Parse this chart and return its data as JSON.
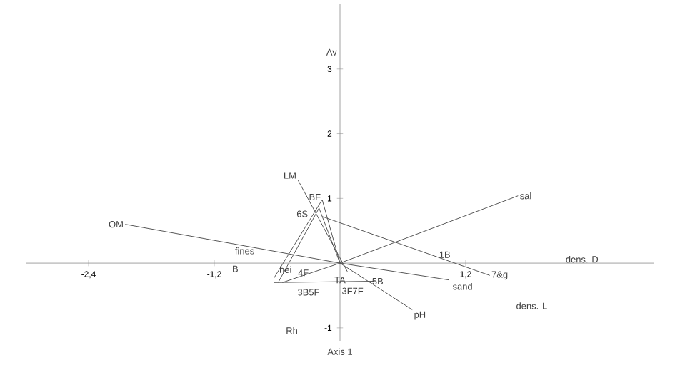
{
  "chart_data": {
    "type": "line",
    "xlabel": "Axis 1",
    "xlim": [
      -3.0,
      3.0
    ],
    "ylim": [
      -1.2,
      4.0
    ],
    "xticks": [
      {
        "value": -2.4,
        "label": "-2,4"
      },
      {
        "value": -1.2,
        "label": "-1,2"
      },
      {
        "value": 1.2,
        "label": "1,2"
      }
    ],
    "yticks": [
      -1,
      1,
      2,
      3
    ],
    "series": [
      {
        "name": "OM",
        "color": "#555555",
        "x": [
          1.04,
          0,
          -2.05
        ],
        "values": [
          -0.26,
          0,
          0.6
        ]
      },
      {
        "name": "sal",
        "color": "#555555",
        "x": [
          -0.55,
          0,
          1.7
        ],
        "values": [
          -0.3,
          0,
          1.04
        ]
      },
      {
        "name": "pH",
        "color": "#555555",
        "x": [
          0,
          0.69
        ],
        "values": [
          0,
          -0.72
        ]
      },
      {
        "name": "LM",
        "color": "#555555",
        "x": [
          0.07,
          -0.4
        ],
        "values": [
          -0.13,
          1.28
        ]
      },
      {
        "name": "7&g",
        "color": "#555555",
        "x": [
          -0.17,
          1.43
        ],
        "values": [
          0.72,
          -0.19
        ]
      },
      {
        "color": "#555555",
        "x": [
          -0.63,
          -0.17,
          0
        ],
        "values": [
          -0.23,
          0.98,
          0
        ]
      },
      {
        "color": "#555555",
        "x": [
          -0.59,
          -0.2,
          0
        ],
        "values": [
          -0.3,
          0.85,
          0
        ]
      },
      {
        "color": "#555555",
        "x": [
          -0.63,
          0.33
        ],
        "values": [
          -0.3,
          -0.28
        ]
      }
    ],
    "annotations": [
      "Av",
      "BF",
      "6S",
      "fines",
      "hei",
      "B",
      "4F",
      "1B",
      "dens. D",
      "5B",
      "TA",
      "3F7F",
      "3B5F",
      "dens. L",
      "Rh",
      "sand"
    ]
  }
}
